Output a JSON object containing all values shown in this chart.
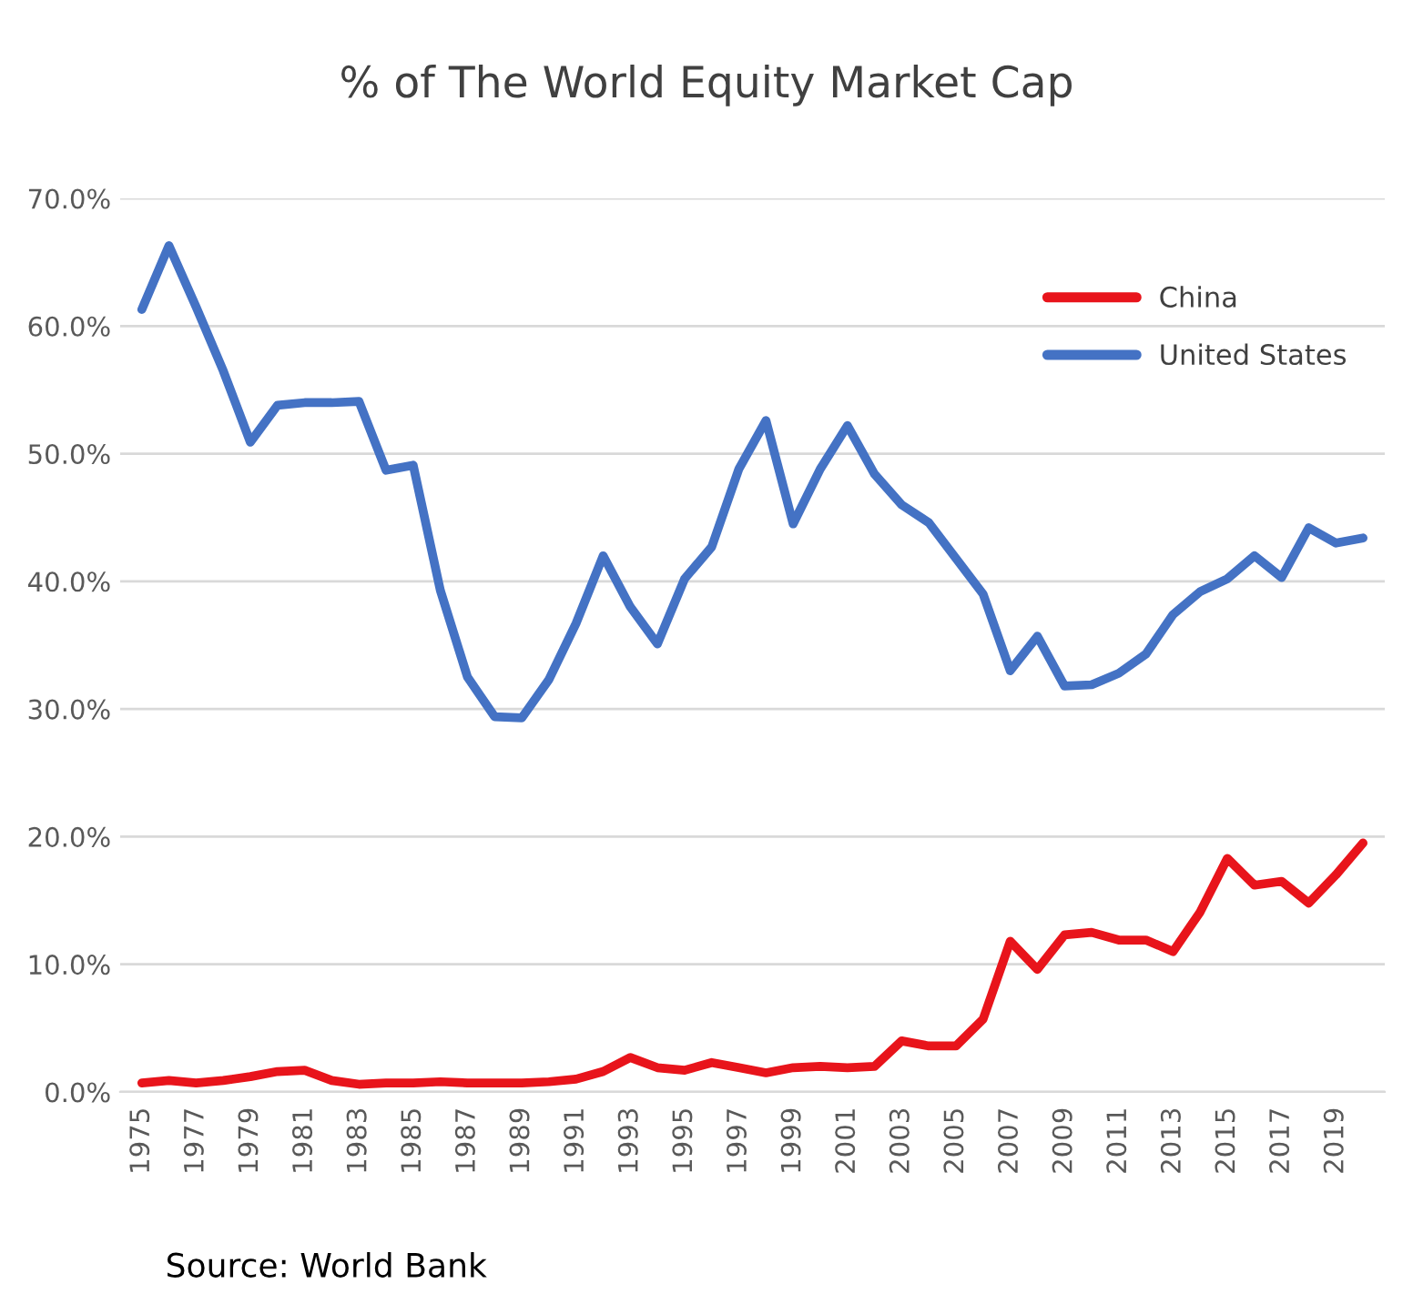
{
  "chart_data": {
    "type": "line",
    "title": "% of The World Equity Market Cap",
    "categories": [
      "1975",
      null,
      "1977",
      null,
      "1979",
      null,
      "1981",
      null,
      "1983",
      null,
      "1985",
      null,
      "1987",
      null,
      "1989",
      null,
      "1991",
      null,
      "1993",
      null,
      "1995",
      null,
      "1997",
      null,
      "1999",
      null,
      "2001",
      null,
      "2003",
      null,
      "2005",
      null,
      "2007",
      null,
      "2009",
      null,
      "2011",
      null,
      "2013",
      null,
      "2015",
      null,
      "2017",
      null,
      "2019",
      null
    ],
    "series": [
      {
        "name": "China",
        "color": "#e8141b",
        "values": [
          0.7,
          0.9,
          0.7,
          0.9,
          1.2,
          1.6,
          1.7,
          0.9,
          0.6,
          0.7,
          0.7,
          0.8,
          0.7,
          0.7,
          0.7,
          0.8,
          1.0,
          1.6,
          2.7,
          1.9,
          1.7,
          2.3,
          1.9,
          1.5,
          1.9,
          2.0,
          1.9,
          2.0,
          4.0,
          3.6,
          3.6,
          5.7,
          11.8,
          9.6,
          12.3,
          12.5,
          11.9,
          11.9,
          11.0,
          14.1,
          18.3,
          16.2,
          16.5,
          14.8,
          17.0,
          19.5
        ]
      },
      {
        "name": "United States",
        "color": "#4472c4",
        "values": [
          61.3,
          66.3,
          61.5,
          56.5,
          50.9,
          53.8,
          54.0,
          54.0,
          54.1,
          48.7,
          49.1,
          39.3,
          32.5,
          29.4,
          29.3,
          32.3,
          36.7,
          42.0,
          38.0,
          35.1,
          40.2,
          42.7,
          48.8,
          52.6,
          44.5,
          48.8,
          52.2,
          48.4,
          46.0,
          44.6,
          41.8,
          39.0,
          33.0,
          35.7,
          31.8,
          31.9,
          32.8,
          34.3,
          37.4,
          39.2,
          40.2,
          42.0,
          40.3,
          44.2,
          43.0,
          43.4
        ]
      }
    ],
    "ylim": [
      0,
      70
    ],
    "yticks": [
      {
        "value": 0,
        "label": "0.0%"
      },
      {
        "value": 10,
        "label": "10.0%"
      },
      {
        "value": 20,
        "label": "20.0%"
      },
      {
        "value": 30,
        "label": "30.0%"
      },
      {
        "value": 40,
        "label": "40.0%"
      },
      {
        "value": 50,
        "label": "50.0%"
      },
      {
        "value": 60,
        "label": "60.0%"
      },
      {
        "value": 70,
        "label": "70.0%"
      }
    ],
    "grid": "y",
    "legend": "top right",
    "marker": "none",
    "line_style": "solid",
    "annotations": [
      "Source: World Bank"
    ]
  }
}
